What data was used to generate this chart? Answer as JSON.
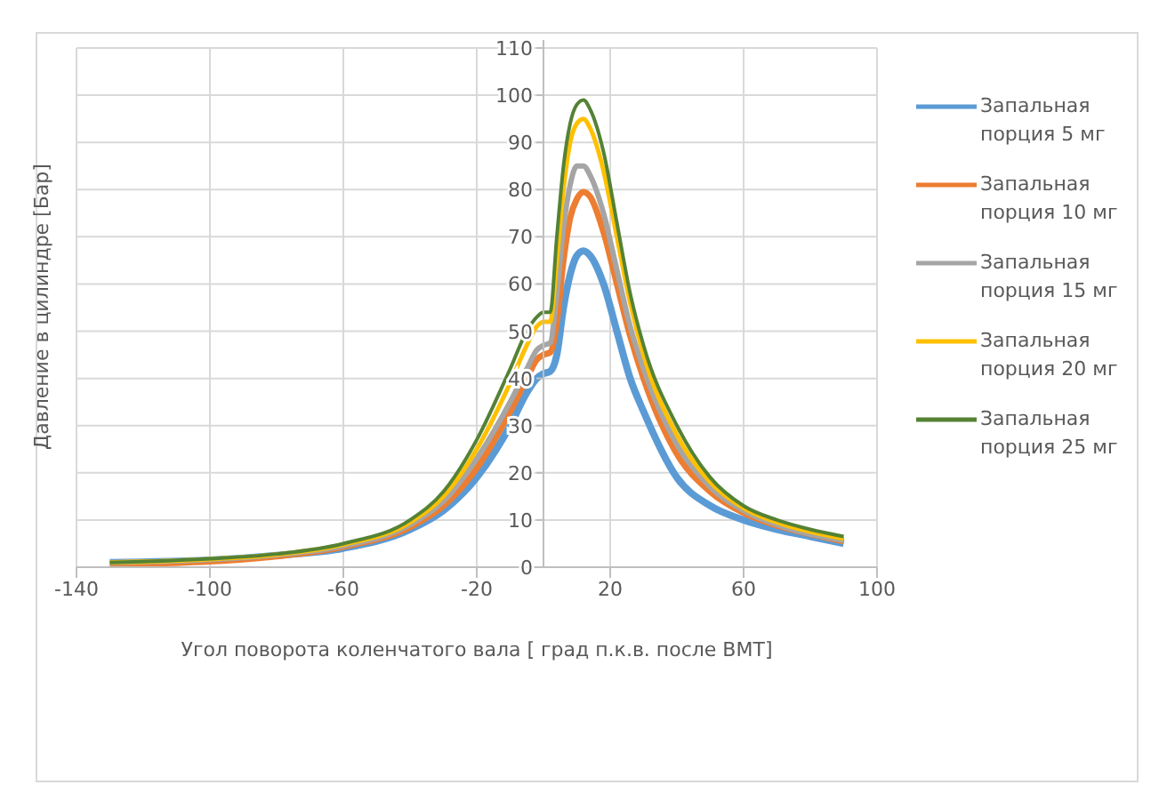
{
  "chart_data": {
    "type": "line",
    "xlabel": "Угол поворота коленчатого вала [ град п.к.в. после ВМТ]",
    "ylabel": "Давление в цилиндре [Бар]",
    "x": [
      -130,
      -100,
      -80,
      -60,
      -40,
      -30,
      -20,
      -10,
      -5,
      -2,
      0,
      2,
      4,
      6,
      8,
      10,
      12,
      14,
      18,
      22,
      26,
      30,
      40,
      50,
      60,
      70,
      80,
      90
    ],
    "series": [
      {
        "name": "Запальная порция 5 мг",
        "color": "#5b9bd5",
        "values": [
          1,
          1.5,
          2.5,
          4,
          8,
          12,
          19,
          30,
          37,
          40,
          41,
          41.5,
          45,
          55,
          62,
          66,
          67,
          66,
          60,
          50,
          40,
          33,
          19,
          13,
          10,
          8,
          6.5,
          5
        ]
      },
      {
        "name": "Запальная порция 10 мг",
        "color": "#ed7d31",
        "values": [
          0.6,
          1.2,
          2.3,
          4.3,
          8.5,
          13,
          21,
          33,
          40,
          44,
          45,
          45.5,
          52,
          65,
          74,
          78,
          79.5,
          78.5,
          71,
          60,
          49,
          40,
          24,
          16,
          11.5,
          8.8,
          7,
          5.5
        ]
      },
      {
        "name": "Запальная порция 15 мг",
        "color": "#a5a5a5",
        "values": [
          1,
          1.6,
          2.6,
          4.5,
          9,
          14,
          23,
          35,
          42,
          46,
          47,
          47.5,
          58,
          72,
          81,
          85,
          85,
          83,
          75,
          63,
          51,
          42,
          26,
          17,
          12,
          9,
          7,
          5.7
        ]
      },
      {
        "name": "Запальная порция 20 мг",
        "color": "#ffc000",
        "values": [
          1,
          1.7,
          2.7,
          4.8,
          9.5,
          15,
          25,
          39,
          47,
          51,
          52,
          52,
          65,
          80,
          90,
          94,
          95,
          93,
          84,
          70,
          56,
          45,
          28,
          18,
          12.5,
          9.5,
          7.5,
          6
        ]
      },
      {
        "name": "Запальная порция 25 мг",
        "color": "#548235",
        "values": [
          1,
          1.8,
          2.8,
          5,
          10,
          16,
          27,
          42,
          50,
          53,
          54,
          54,
          70,
          85,
          94,
          98,
          99,
          97,
          88,
          73,
          58,
          47,
          30,
          19,
          13,
          10,
          8,
          6.5
        ]
      }
    ],
    "xlim": [
      -140,
      100
    ],
    "xticks": [
      -140,
      -100,
      -60,
      -20,
      20,
      60,
      100
    ],
    "ylim": [
      0,
      110
    ],
    "yticks": [
      0,
      10,
      20,
      30,
      40,
      50,
      60,
      70,
      80,
      90,
      100,
      110
    ],
    "grid": true,
    "legend": "right",
    "marker": "none",
    "line_style": "solid"
  }
}
